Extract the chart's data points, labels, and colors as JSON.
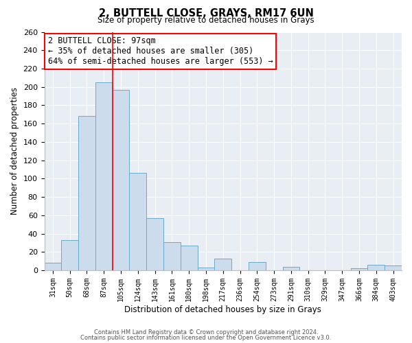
{
  "title": "2, BUTTELL CLOSE, GRAYS, RM17 6UN",
  "subtitle": "Size of property relative to detached houses in Grays",
  "xlabel": "Distribution of detached houses by size in Grays",
  "ylabel": "Number of detached properties",
  "bar_color": "#ccdcec",
  "bar_edge_color": "#6aaaca",
  "categories": [
    "31sqm",
    "50sqm",
    "68sqm",
    "87sqm",
    "105sqm",
    "124sqm",
    "143sqm",
    "161sqm",
    "180sqm",
    "198sqm",
    "217sqm",
    "236sqm",
    "254sqm",
    "273sqm",
    "291sqm",
    "310sqm",
    "329sqm",
    "347sqm",
    "366sqm",
    "384sqm",
    "403sqm"
  ],
  "values": [
    8,
    33,
    168,
    205,
    197,
    106,
    57,
    31,
    27,
    3,
    13,
    0,
    9,
    0,
    4,
    0,
    0,
    0,
    2,
    6,
    5
  ],
  "ylim": [
    0,
    260
  ],
  "yticks": [
    0,
    20,
    40,
    60,
    80,
    100,
    120,
    140,
    160,
    180,
    200,
    220,
    240,
    260
  ],
  "red_line_x": 3.5,
  "annotation_title": "2 BUTTELL CLOSE: 97sqm",
  "annotation_line1": "← 35% of detached houses are smaller (305)",
  "annotation_line2": "64% of semi-detached houses are larger (553) →",
  "footer1": "Contains HM Land Registry data © Crown copyright and database right 2024.",
  "footer2": "Contains public sector information licensed under the Open Government Licence v3.0.",
  "bg_color": "#ffffff",
  "plot_bg_color": "#e8eef4"
}
